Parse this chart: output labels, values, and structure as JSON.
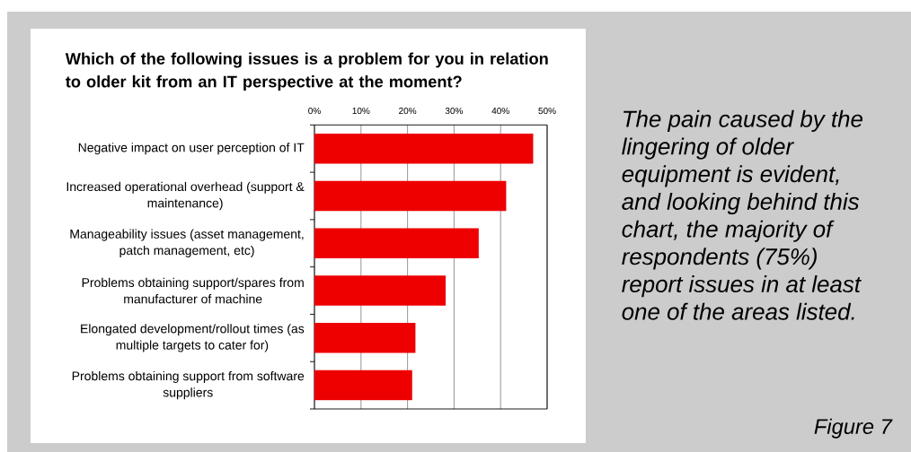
{
  "chart_data": {
    "type": "bar",
    "orientation": "horizontal",
    "title": "Which of the following issues is a problem for you in relation to older kit from an IT perspective at the moment?",
    "categories": [
      "Negative impact on user perception of IT",
      "Increased operational overhead (support & maintenance)",
      "Manageability issues (asset management, patch management, etc)",
      "Problems obtaining support/spares from manufacturer of machine",
      "Elongated development/rollout times (as multiple targets to cater for)",
      "Problems obtaining support from software suppliers"
    ],
    "values": [
      47,
      41.2,
      35.3,
      28.2,
      21.7,
      21
    ],
    "color": "#ee0000",
    "xlim": [
      0,
      50
    ],
    "xticks": [
      {
        "value": 0,
        "label": "0%"
      },
      {
        "value": 10,
        "label": "10%"
      },
      {
        "value": 20,
        "label": "20%"
      },
      {
        "value": 30,
        "label": "30%"
      },
      {
        "value": 40,
        "label": "40%"
      },
      {
        "value": 50,
        "label": "50%"
      }
    ],
    "grid": "x",
    "annotations": [
      "The pain caused by the lingering of older equipment is evident, and looking behind this chart, the majority of respondents (75%) report issues in at least one of the areas listed.",
      "Figure 7"
    ]
  }
}
